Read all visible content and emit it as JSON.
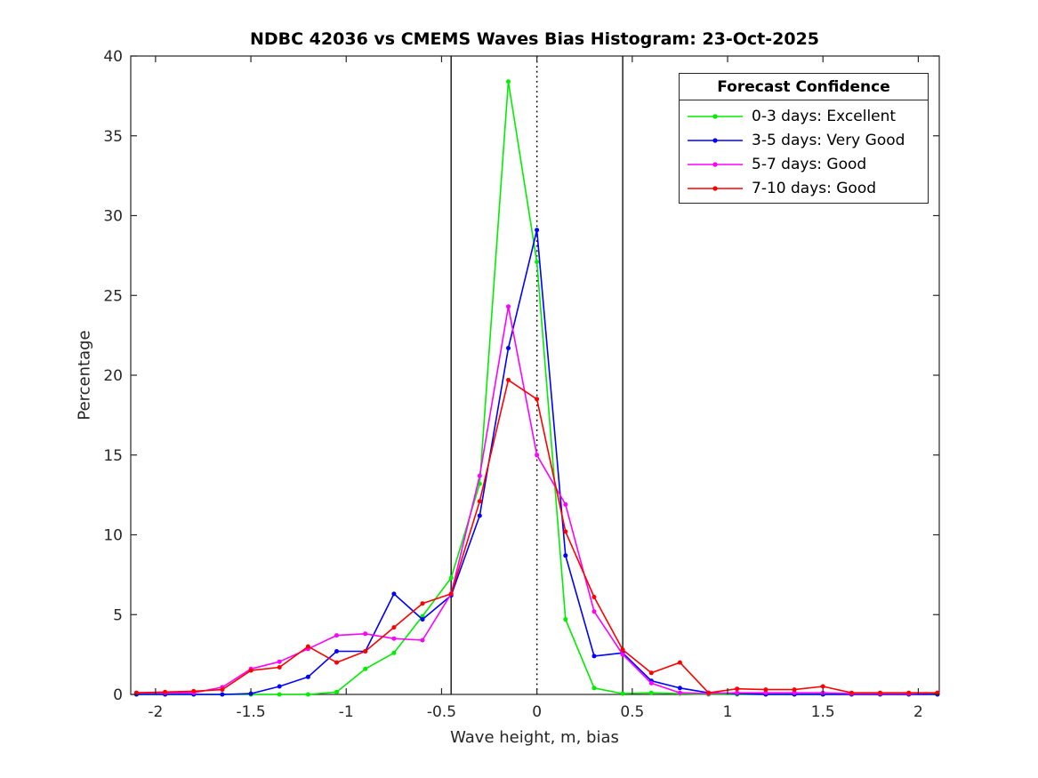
{
  "chart_data": {
    "type": "line",
    "title": "NDBC 42036 vs CMEMS Waves Bias Histogram: 23-Oct-2025",
    "xlabel": "Wave height, m, bias",
    "ylabel": "Percentage",
    "xlim": [
      -2.13,
      2.11
    ],
    "ylim": [
      0,
      40
    ],
    "xticks": [
      -2,
      -1.5,
      -1,
      -0.5,
      0,
      0.5,
      1,
      1.5,
      2
    ],
    "xtick_labels": [
      "-2",
      "-1.5",
      "-1",
      "-0.5",
      "0",
      "0.5",
      "1",
      "1.5",
      "2"
    ],
    "yticks": [
      0,
      5,
      10,
      15,
      20,
      25,
      30,
      35,
      40
    ],
    "ytick_labels": [
      "0",
      "5",
      "10",
      "15",
      "20",
      "25",
      "30",
      "35",
      "40"
    ],
    "grid": false,
    "box": true,
    "axis_color": "#262626",
    "legend": {
      "title": "Forecast Confidence",
      "position": "top-right"
    },
    "reference_lines": [
      {
        "x": -0.45,
        "style": "solid",
        "color": "#000000"
      },
      {
        "x": 0,
        "style": "dotted",
        "color": "#000000"
      },
      {
        "x": 0.45,
        "style": "solid",
        "color": "#000000"
      }
    ],
    "x": [
      -2.1,
      -1.95,
      -1.8,
      -1.65,
      -1.5,
      -1.35,
      -1.2,
      -1.05,
      -0.9,
      -0.75,
      -0.6,
      -0.45,
      -0.3,
      -0.15,
      0,
      0.15,
      0.3,
      0.45,
      0.6,
      0.75,
      0.9,
      1.05,
      1.2,
      1.35,
      1.5,
      1.65,
      1.8,
      1.95,
      2.1
    ],
    "series": [
      {
        "name": "0-3 days: Excellent",
        "color": "#00ee00",
        "values": [
          0,
          0,
          0,
          0,
          0,
          0,
          0,
          0.15,
          1.6,
          2.6,
          4.9,
          7.3,
          13.2,
          38.4,
          27.1,
          4.7,
          0.4,
          0.05,
          0.1,
          0.05,
          0,
          0,
          0,
          0,
          0,
          0,
          0,
          0,
          0
        ]
      },
      {
        "name": "3-5 days: Very Good",
        "color": "#0000ff",
        "values": [
          0,
          0,
          0,
          0,
          0.05,
          0.5,
          1.1,
          2.7,
          2.7,
          6.3,
          4.7,
          6.2,
          11.2,
          21.7,
          29.1,
          8.7,
          2.4,
          2.6,
          0.85,
          0.4,
          0.1,
          0.05,
          0,
          0,
          0,
          0,
          0,
          0,
          0
        ]
      },
      {
        "name": "5-7 days: Good",
        "color": "#ff00ff",
        "values": [
          0.1,
          0.1,
          0.1,
          0.45,
          1.6,
          2.05,
          2.85,
          3.7,
          3.8,
          3.5,
          3.4,
          6.3,
          13.7,
          24.3,
          15.0,
          11.9,
          5.2,
          2.5,
          0.7,
          0.1,
          0.05,
          0.1,
          0.1,
          0.1,
          0.1,
          0.05,
          0.05,
          0.05,
          0.1
        ]
      },
      {
        "name": "7-10 days: Good",
        "color": "#ff0000",
        "values": [
          0.1,
          0.15,
          0.2,
          0.3,
          1.5,
          1.7,
          3.0,
          2.0,
          2.7,
          4.2,
          5.7,
          6.3,
          12.1,
          19.7,
          18.5,
          10.2,
          6.1,
          2.8,
          1.35,
          2.0,
          0.1,
          0.35,
          0.3,
          0.3,
          0.5,
          0.1,
          0.1,
          0.1,
          0.1
        ]
      }
    ]
  }
}
